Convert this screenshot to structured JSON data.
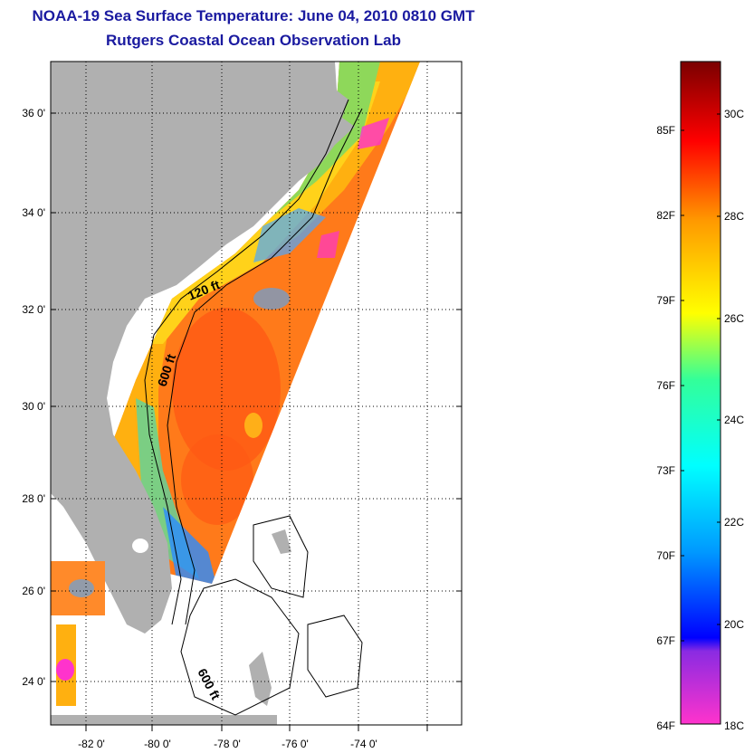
{
  "title": "NOAA-19 Sea Surface Temperature:  June 04, 2010 0810 GMT",
  "subtitle": "Rutgers Coastal Ocean Observation Lab",
  "map": {
    "lat_ticks": [
      {
        "value": 36,
        "label": "36 0'"
      },
      {
        "value": 34,
        "label": "34 0'"
      },
      {
        "value": 32,
        "label": "32 0'"
      },
      {
        "value": 30,
        "label": "30 0'"
      },
      {
        "value": 28,
        "label": "28 0'"
      },
      {
        "value": 26,
        "label": "26 0'"
      },
      {
        "value": 24,
        "label": "24 0'"
      }
    ],
    "lon_ticks": [
      {
        "value": -82,
        "label": "-82 0'"
      },
      {
        "value": -80,
        "label": "-80 0'"
      },
      {
        "value": -78,
        "label": "-78 0'"
      },
      {
        "value": -76,
        "label": "-76 0'"
      },
      {
        "value": -74,
        "label": "-74 0'"
      }
    ],
    "isobaths": [
      "120 ft",
      "600 ft",
      "600 ft"
    ]
  },
  "colorbar": {
    "fahrenheit": [
      "85F",
      "82F",
      "79F",
      "76F",
      "73F",
      "70F",
      "67F",
      "64F"
    ],
    "celsius": [
      "30C",
      "28C",
      "26C",
      "24C",
      "22C",
      "20C",
      "18C"
    ]
  },
  "colors": {
    "title": "#1a1aa0",
    "land": "#b0b0b0",
    "ocean_warm": "#ff7a1a",
    "shelf_warm": "#ffb010"
  }
}
